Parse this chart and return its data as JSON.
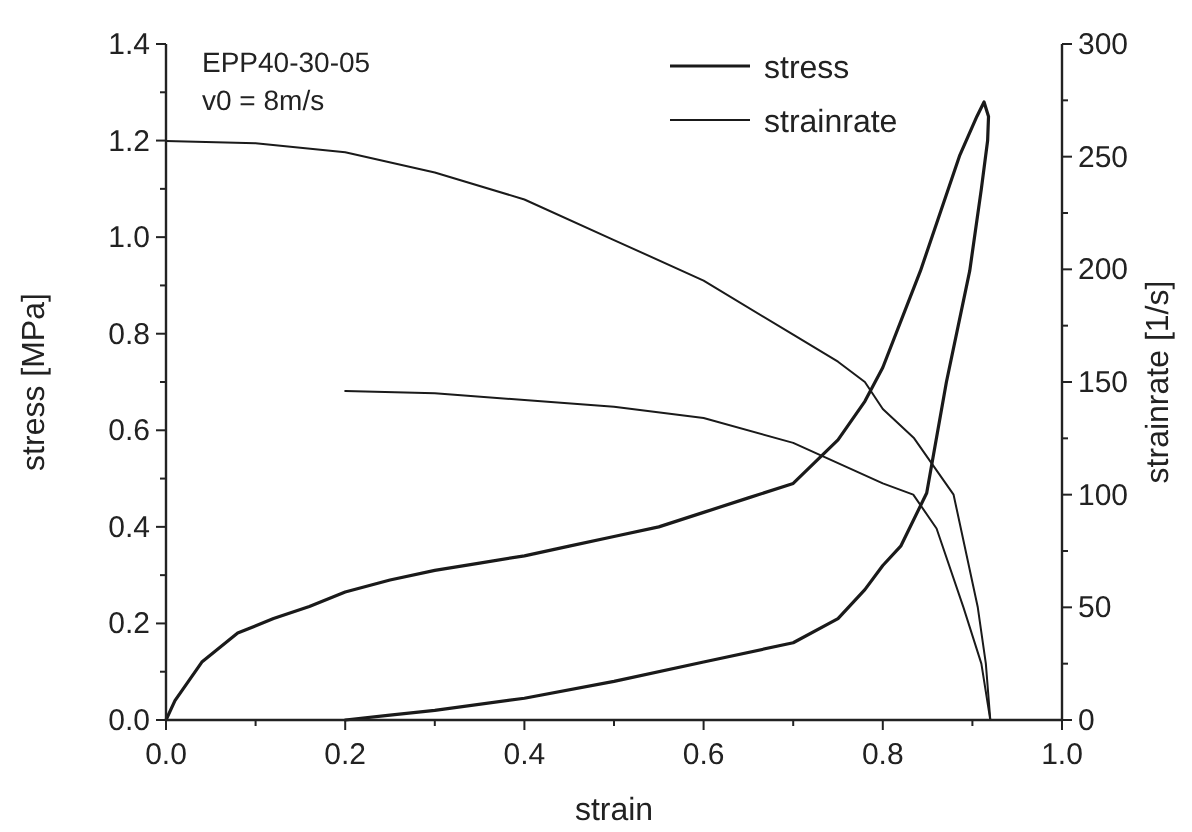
{
  "chart_data": {
    "type": "line",
    "xlabel": "strain",
    "ylabel": "stress [MPa]",
    "y2label": "strainrate [1/s]",
    "annotations": [
      "EPP40-30-05",
      "v0 = 8m/s"
    ],
    "xlim": [
      0,
      1
    ],
    "xticks": [
      {
        "value": 0,
        "label": "0.0"
      },
      {
        "value": 0.1,
        "label": null
      },
      {
        "value": 0.2,
        "label": "0.2"
      },
      {
        "value": 0.3,
        "label": null
      },
      {
        "value": 0.4,
        "label": "0.4"
      },
      {
        "value": 0.5,
        "label": null
      },
      {
        "value": 0.6,
        "label": "0.6"
      },
      {
        "value": 0.7,
        "label": null
      },
      {
        "value": 0.8,
        "label": "0.8"
      },
      {
        "value": 0.9,
        "label": null
      },
      {
        "value": 1,
        "label": "1.0"
      }
    ],
    "ylim": [
      0,
      1.4
    ],
    "yticks": [
      {
        "value": 0,
        "label": "0.0"
      },
      {
        "value": 0.1,
        "label": null
      },
      0.2,
      {
        "value": 0.3,
        "label": null
      },
      0.4,
      {
        "value": 0.5,
        "label": null
      },
      0.6,
      {
        "value": 0.7,
        "label": null
      },
      0.8,
      {
        "value": 0.9,
        "label": null
      },
      {
        "value": 1,
        "label": "1.0"
      },
      {
        "value": 1.1,
        "label": null
      },
      1.2,
      {
        "value": 1.3,
        "label": null
      },
      1.4
    ],
    "y2lim": [
      0,
      300
    ],
    "y2ticks": [
      0,
      {
        "value": 25,
        "label": null
      },
      50,
      {
        "value": 75,
        "label": null
      },
      100,
      {
        "value": 125,
        "label": null
      },
      150,
      {
        "value": 175,
        "label": null
      },
      200,
      {
        "value": 225,
        "label": null
      },
      250,
      {
        "value": 275,
        "label": null
      },
      300
    ],
    "grid": false,
    "legend": "top right",
    "marker": "none",
    "line_style": "solid",
    "series": [
      {
        "name": "stress",
        "color": "#1a1a1a",
        "x": [
          0,
          0.01,
          0.04,
          0.08,
          0.12,
          0.16,
          0.2,
          0.25,
          0.3,
          0.35,
          0.4,
          0.45,
          0.5,
          0.55,
          0.6,
          0.65,
          0.7,
          0.75,
          0.78,
          0.8,
          0.842,
          0.886,
          0.905,
          0.913,
          0.918,
          0.917,
          0.91,
          0.897,
          0.871,
          0.849,
          0.82,
          0.8,
          0.78,
          0.75,
          0.7,
          0.6,
          0.5,
          0.4,
          0.3,
          0.25,
          0.2
        ],
        "values": [
          0,
          0.04,
          0.12,
          0.18,
          0.21,
          0.235,
          0.265,
          0.29,
          0.31,
          0.325,
          0.34,
          0.36,
          0.38,
          0.4,
          0.43,
          0.46,
          0.49,
          0.58,
          0.66,
          0.73,
          0.93,
          1.17,
          1.25,
          1.28,
          1.25,
          1.2,
          1.1,
          0.93,
          0.7,
          0.47,
          0.36,
          0.32,
          0.27,
          0.21,
          0.16,
          0.12,
          0.08,
          0.045,
          0.02,
          0.01,
          0
        ]
      },
      {
        "name": "strainrate",
        "color": "#1a1a1a",
        "axis": "y2",
        "x": [
          0,
          0.1,
          0.2,
          0.3,
          0.4,
          0.5,
          0.6,
          0.7,
          0.75,
          0.78,
          0.8,
          0.835,
          0.879,
          0.906,
          0.915,
          0.92
        ],
        "values": [
          257,
          256,
          252,
          243,
          231,
          213,
          195,
          171,
          159,
          150,
          138,
          125,
          100,
          50,
          25,
          0
        ]
      },
      {
        "color": "#1a1a1a",
        "axis": "y2",
        "x": [
          0.2,
          0.3,
          0.4,
          0.5,
          0.6,
          0.7,
          0.8,
          0.834,
          0.86,
          0.89,
          0.91,
          0.92
        ],
        "values": [
          146,
          145,
          142,
          139,
          134,
          123,
          105,
          100,
          85,
          50,
          25,
          0
        ]
      }
    ]
  }
}
